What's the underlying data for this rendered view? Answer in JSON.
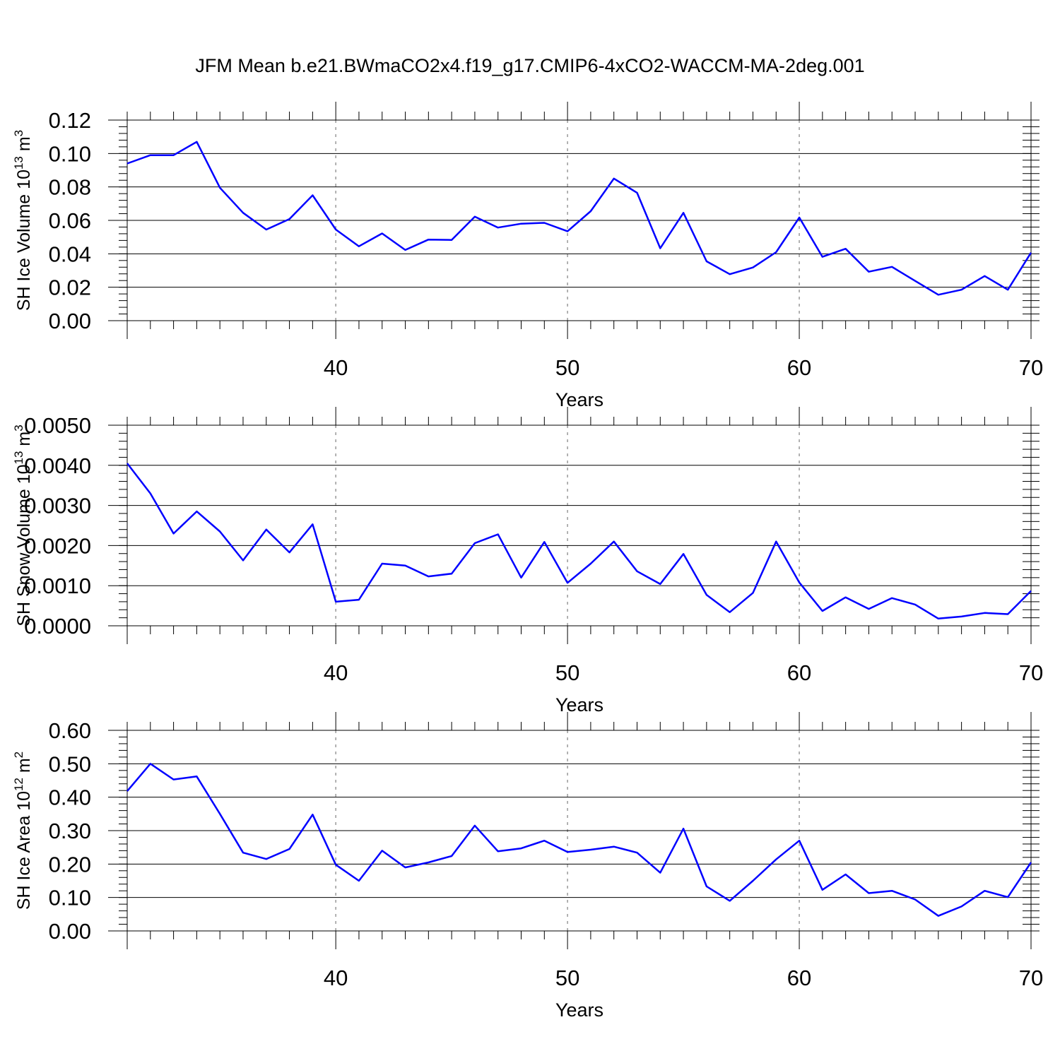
{
  "figure": {
    "title": "JFM Mean b.e21.BWmaCO2x4.f19_g17.CMIP6-4xCO2-WACCM-MA-2deg.001"
  },
  "chart_data": [
    {
      "type": "line",
      "title": "",
      "xlabel": "Years",
      "ylabel": "SH Ice Volume",
      "ylabel_power": "13",
      "ylabel_unit_power": "3",
      "xlim": [
        31,
        70
      ],
      "ylim": [
        0,
        0.12
      ],
      "xticks": [
        40,
        50,
        60,
        70
      ],
      "xtick_labels": [
        "40",
        "50",
        "60",
        "70"
      ],
      "yticks": [
        0,
        0.02,
        0.04,
        0.06,
        0.08,
        0.1,
        0.12
      ],
      "ytick_labels": [
        "0.00",
        "0.02",
        "0.04",
        "0.06",
        "0.08",
        "0.10",
        "0.12"
      ],
      "grid": "vertical dashed at major x ticks",
      "line_color": "#0000ff",
      "x": [
        31,
        32,
        33,
        34,
        35,
        36,
        37,
        38,
        39,
        40,
        41,
        42,
        43,
        44,
        45,
        46,
        47,
        48,
        49,
        50,
        51,
        52,
        53,
        54,
        55,
        56,
        57,
        58,
        59,
        60,
        61,
        62,
        63,
        64,
        65,
        66,
        67,
        68,
        69,
        70
      ],
      "series": [
        {
          "values": [
            0.094,
            0.099,
            0.099,
            0.107,
            0.0795,
            0.0645,
            0.0545,
            0.0608,
            0.075,
            0.0545,
            0.0445,
            0.0522,
            0.0423,
            0.0485,
            0.0483,
            0.0622,
            0.0557,
            0.058,
            0.0585,
            0.0535,
            0.0655,
            0.085,
            0.0765,
            0.0433,
            0.0645,
            0.0355,
            0.0278,
            0.0318,
            0.041,
            0.0617,
            0.0382,
            0.043,
            0.0293,
            0.0322,
            0.0238,
            0.0155,
            0.0185,
            0.0267,
            0.0185,
            0.0407
          ]
        }
      ]
    },
    {
      "type": "line",
      "title": "",
      "xlabel": "Years",
      "ylabel": "SH Snow Volume",
      "ylabel_power": "13",
      "ylabel_unit_power": "3",
      "xlim": [
        31,
        70
      ],
      "ylim": [
        0,
        0.005
      ],
      "xticks": [
        40,
        50,
        60,
        70
      ],
      "xtick_labels": [
        "40",
        "50",
        "60",
        "70"
      ],
      "yticks": [
        0,
        0.001,
        0.002,
        0.003,
        0.004,
        0.005
      ],
      "ytick_labels": [
        "0.0000",
        "0.0010",
        "0.0020",
        "0.0030",
        "0.0040",
        "0.0050"
      ],
      "grid": "vertical dashed at major x ticks",
      "line_color": "#0000ff",
      "x": [
        31,
        32,
        33,
        34,
        35,
        36,
        37,
        38,
        39,
        40,
        41,
        42,
        43,
        44,
        45,
        46,
        47,
        48,
        49,
        50,
        51,
        52,
        53,
        54,
        55,
        56,
        57,
        58,
        59,
        60,
        61,
        62,
        63,
        64,
        65,
        66,
        67,
        68,
        69,
        70
      ],
      "series": [
        {
          "values": [
            0.00405,
            0.0033,
            0.0023,
            0.00285,
            0.00235,
            0.00163,
            0.0024,
            0.00183,
            0.00253,
            0.0006,
            0.00065,
            0.00155,
            0.0015,
            0.00123,
            0.0013,
            0.00206,
            0.00228,
            0.0012,
            0.00209,
            0.00107,
            0.00155,
            0.0021,
            0.00136,
            0.00104,
            0.00179,
            0.00077,
            0.00034,
            0.00082,
            0.0021,
            0.00108,
            0.00037,
            0.00071,
            0.00042,
            0.00069,
            0.00053,
            0.00018,
            0.00023,
            0.00032,
            0.00029,
            0.00087
          ]
        }
      ]
    },
    {
      "type": "line",
      "title": "",
      "xlabel": "Years",
      "ylabel": "SH Ice Area",
      "ylabel_power": "12",
      "ylabel_unit_power": "2",
      "xlim": [
        31,
        70
      ],
      "ylim": [
        0,
        0.6
      ],
      "xticks": [
        40,
        50,
        60,
        70
      ],
      "xtick_labels": [
        "40",
        "50",
        "60",
        "70"
      ],
      "yticks": [
        0,
        0.1,
        0.2,
        0.3,
        0.4,
        0.5,
        0.6
      ],
      "ytick_labels": [
        "0.00",
        "0.10",
        "0.20",
        "0.30",
        "0.40",
        "0.50",
        "0.60"
      ],
      "grid": "vertical dashed at major x ticks",
      "line_color": "#0000ff",
      "x": [
        31,
        32,
        33,
        34,
        35,
        36,
        37,
        38,
        39,
        40,
        41,
        42,
        43,
        44,
        45,
        46,
        47,
        48,
        49,
        50,
        51,
        52,
        53,
        54,
        55,
        56,
        57,
        58,
        59,
        60,
        61,
        62,
        63,
        64,
        65,
        66,
        67,
        68,
        69,
        70
      ],
      "series": [
        {
          "values": [
            0.418,
            0.5,
            0.453,
            0.462,
            0.35,
            0.234,
            0.215,
            0.245,
            0.348,
            0.198,
            0.15,
            0.24,
            0.19,
            0.205,
            0.224,
            0.315,
            0.238,
            0.247,
            0.27,
            0.236,
            0.243,
            0.252,
            0.234,
            0.174,
            0.306,
            0.133,
            0.09,
            0.15,
            0.214,
            0.27,
            0.123,
            0.169,
            0.113,
            0.12,
            0.094,
            0.045,
            0.073,
            0.12,
            0.101,
            0.205
          ]
        }
      ]
    }
  ]
}
